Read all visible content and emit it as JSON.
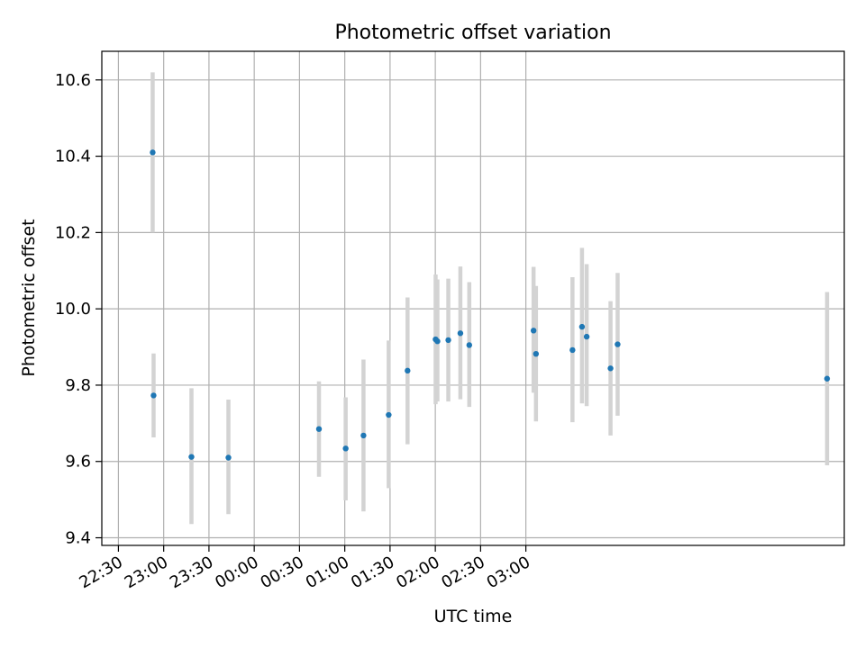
{
  "chart_data": {
    "type": "scatter",
    "title": "Photometric offset variation",
    "xlabel": "UTC time",
    "ylabel": "Photometric offset",
    "grid": true,
    "x_unit": "minutes from 22:30 UTC",
    "xlim": [
      -11,
      481
    ],
    "ylim": [
      9.38,
      10.675
    ],
    "xticks": [
      {
        "value": 0,
        "label": "22:30"
      },
      {
        "value": 30,
        "label": "23:00"
      },
      {
        "value": 60,
        "label": "23:30"
      },
      {
        "value": 90,
        "label": "00:00"
      },
      {
        "value": 120,
        "label": "00:30"
      },
      {
        "value": 150,
        "label": "01:00"
      },
      {
        "value": 180,
        "label": "01:30"
      },
      {
        "value": 210,
        "label": "02:00"
      },
      {
        "value": 240,
        "label": "02:30"
      },
      {
        "value": 270,
        "label": "03:00"
      }
    ],
    "yticks": [
      {
        "value": 9.4,
        "label": "9.4"
      },
      {
        "value": 9.6,
        "label": "9.6"
      },
      {
        "value": 9.8,
        "label": "9.8"
      },
      {
        "value": 10.0,
        "label": "10.0"
      },
      {
        "value": 10.2,
        "label": "10.2"
      },
      {
        "value": 10.4,
        "label": "10.4"
      },
      {
        "value": 10.6,
        "label": "10.6"
      }
    ],
    "colors": {
      "points": "#1f77b4",
      "errorbars": "#d3d3d3",
      "grid": "#b0b0b0"
    },
    "points": [
      {
        "x": 22.7,
        "y": 10.41,
        "lo": 10.2,
        "hi": 10.62
      },
      {
        "x": 23.3,
        "y": 9.773,
        "lo": 9.663,
        "hi": 9.883
      },
      {
        "x": 48.4,
        "y": 9.612,
        "lo": 9.436,
        "hi": 9.792
      },
      {
        "x": 72.9,
        "y": 9.61,
        "lo": 9.462,
        "hi": 9.762
      },
      {
        "x": 132.9,
        "y": 9.685,
        "lo": 9.56,
        "hi": 9.81
      },
      {
        "x": 150.6,
        "y": 9.634,
        "lo": 9.498,
        "hi": 9.768
      },
      {
        "x": 162.4,
        "y": 9.668,
        "lo": 9.469,
        "hi": 9.867
      },
      {
        "x": 179.1,
        "y": 9.722,
        "lo": 9.53,
        "hi": 9.917
      },
      {
        "x": 191.6,
        "y": 9.838,
        "lo": 9.645,
        "hi": 10.03
      },
      {
        "x": 210.2,
        "y": 9.92,
        "lo": 9.75,
        "hi": 10.09
      },
      {
        "x": 211.4,
        "y": 9.915,
        "lo": 9.757,
        "hi": 10.077
      },
      {
        "x": 218.6,
        "y": 9.918,
        "lo": 9.757,
        "hi": 10.079
      },
      {
        "x": 226.6,
        "y": 9.936,
        "lo": 9.763,
        "hi": 10.111
      },
      {
        "x": 232.5,
        "y": 9.905,
        "lo": 9.743,
        "hi": 10.07
      },
      {
        "x": 275.1,
        "y": 9.943,
        "lo": 9.78,
        "hi": 10.11
      },
      {
        "x": 276.7,
        "y": 9.882,
        "lo": 9.705,
        "hi": 10.06
      },
      {
        "x": 300.9,
        "y": 9.892,
        "lo": 9.703,
        "hi": 10.083
      },
      {
        "x": 307.2,
        "y": 9.953,
        "lo": 9.752,
        "hi": 10.16
      },
      {
        "x": 310.3,
        "y": 9.927,
        "lo": 9.745,
        "hi": 10.117
      },
      {
        "x": 326.1,
        "y": 9.844,
        "lo": 9.668,
        "hi": 10.02
      },
      {
        "x": 330.8,
        "y": 9.907,
        "lo": 9.72,
        "hi": 10.094
      },
      {
        "x": 469.6,
        "y": 9.817,
        "lo": 9.59,
        "hi": 10.044
      }
    ]
  }
}
